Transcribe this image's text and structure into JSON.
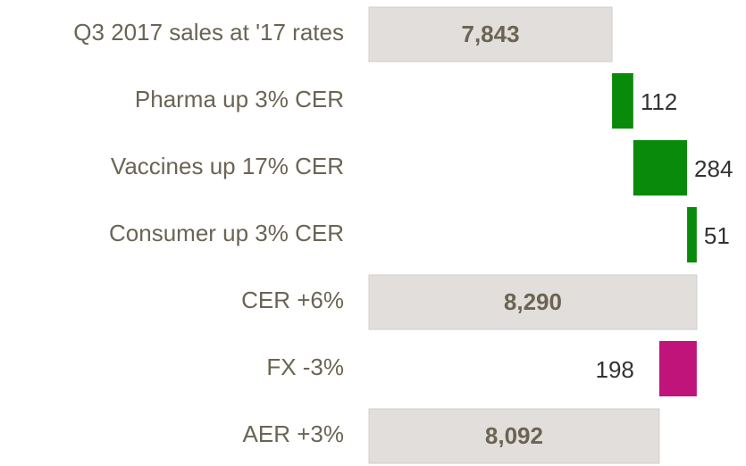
{
  "chart_data": {
    "type": "waterfall",
    "categories": [
      "Q3 2017 sales at '17 rates",
      "Pharma up 3% CER",
      "Vaccines up 17% CER",
      "Consumer up 3% CER",
      "CER +6%",
      "FX -3%",
      "AER +3%"
    ],
    "values": [
      7843,
      112,
      284,
      51,
      8290,
      -198,
      8092
    ],
    "value_labels": [
      "7,843",
      "112",
      "284",
      "51",
      "8,290",
      "198",
      "8,092"
    ],
    "measure": [
      "absolute",
      "relative",
      "relative",
      "relative",
      "absolute",
      "relative",
      "absolute"
    ],
    "colors": [
      "#e2dedb",
      "#0a8a0a",
      "#0a8a0a",
      "#0a8a0a",
      "#e2dedb",
      "#c0147a",
      "#e2dedb"
    ],
    "xlim": [
      6560,
      8550
    ]
  }
}
